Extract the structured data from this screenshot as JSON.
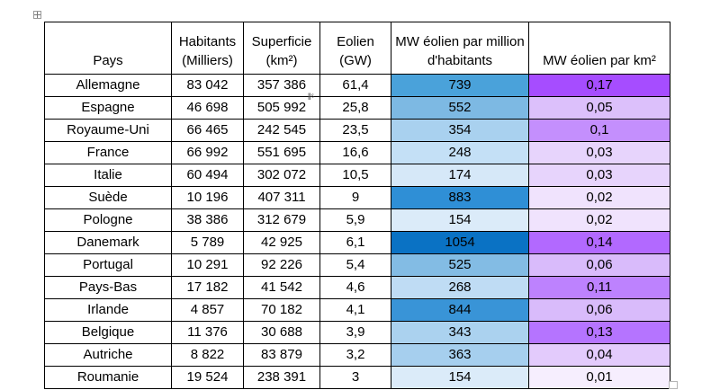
{
  "table": {
    "headers": {
      "pays": "Pays",
      "habitants": "Habitants (Milliers)",
      "superficie": "Superficie (km²)",
      "eolien": "Eolien (GW)",
      "mw_hab": "MW éolien par million d'habitants",
      "mw_km2": "MW éolien par km²"
    },
    "rows": [
      {
        "pays": "Allemagne",
        "habitants": "83 042",
        "superficie": "357 386",
        "eolien": "61,4",
        "mw_hab": "739",
        "mw_km2": "0,17",
        "mw_hab_color": "#4aa2da",
        "mw_km2_color": "#a64dff"
      },
      {
        "pays": "Espagne",
        "habitants": "46 698",
        "superficie": "505 992",
        "eolien": "25,8",
        "mw_hab": "552",
        "mw_km2": "0,05",
        "mw_hab_color": "#7db9e3",
        "mw_km2_color": "#dcc0fb"
      },
      {
        "pays": "Royaume-Uni",
        "habitants": "66 465",
        "superficie": "242 545",
        "eolien": "23,5",
        "mw_hab": "354",
        "mw_km2": "0,1",
        "mw_hab_color": "#a9d1ef",
        "mw_km2_color": "#c48ffd"
      },
      {
        "pays": "France",
        "habitants": "66 992",
        "superficie": "551 695",
        "eolien": "16,6",
        "mw_hab": "248",
        "mw_km2": "0,03",
        "mw_hab_color": "#c4e0f6",
        "mw_km2_color": "#e7d4fc"
      },
      {
        "pays": "Italie",
        "habitants": "60 494",
        "superficie": "302 072",
        "eolien": "10,5",
        "mw_hab": "174",
        "mw_km2": "0,03",
        "mw_hab_color": "#d6e8f8",
        "mw_km2_color": "#e7d4fc"
      },
      {
        "pays": "Suède",
        "habitants": "10 196",
        "superficie": "407 311",
        "eolien": "9",
        "mw_hab": "883",
        "mw_km2": "0,02",
        "mw_hab_color": "#2f8fd6",
        "mw_km2_color": "#f0e3fd"
      },
      {
        "pays": "Pologne",
        "habitants": "38 386",
        "superficie": "312 679",
        "eolien": "5,9",
        "mw_hab": "154",
        "mw_km2": "0,02",
        "mw_hab_color": "#dbebf9",
        "mw_km2_color": "#f0e3fd"
      },
      {
        "pays": "Danemark",
        "habitants": "5 789",
        "superficie": "42 925",
        "eolien": "6,1",
        "mw_hab": "1054",
        "mw_km2": "0,14",
        "mw_hab_color": "#0a72c4",
        "mw_km2_color": "#b269ff"
      },
      {
        "pays": "Portugal",
        "habitants": "10 291",
        "superficie": "92 226",
        "eolien": "5,4",
        "mw_hab": "525",
        "mw_km2": "0,06",
        "mw_hab_color": "#83bce4",
        "mw_km2_color": "#d9bbfb"
      },
      {
        "pays": "Pays-Bas",
        "habitants": "17 182",
        "superficie": "41 542",
        "eolien": "4,6",
        "mw_hab": "268",
        "mw_km2": "0,11",
        "mw_hab_color": "#bfdcf4",
        "mw_km2_color": "#bd82fe"
      },
      {
        "pays": "Irlande",
        "habitants": "4 857",
        "superficie": "70 182",
        "eolien": "4,1",
        "mw_hab": "844",
        "mw_km2": "0,06",
        "mw_hab_color": "#3994d7",
        "mw_km2_color": "#d9bbfb"
      },
      {
        "pays": "Belgique",
        "habitants": "11 376",
        "superficie": "30 688",
        "eolien": "3,9",
        "mw_hab": "343",
        "mw_km2": "0,13",
        "mw_hab_color": "#abd2ef",
        "mw_km2_color": "#b574ff"
      },
      {
        "pays": "Autriche",
        "habitants": "8 822",
        "superficie": "83 879",
        "eolien": "3,2",
        "mw_hab": "363",
        "mw_km2": "0,04",
        "mw_hab_color": "#a6cfee",
        "mw_km2_color": "#e3cbfc"
      },
      {
        "pays": "Roumanie",
        "habitants": "19 524",
        "superficie": "238 391",
        "eolien": "3",
        "mw_hab": "154",
        "mw_km2": "0,01",
        "mw_hab_color": "#dbebf9",
        "mw_km2_color": "#f6eefe"
      }
    ]
  }
}
